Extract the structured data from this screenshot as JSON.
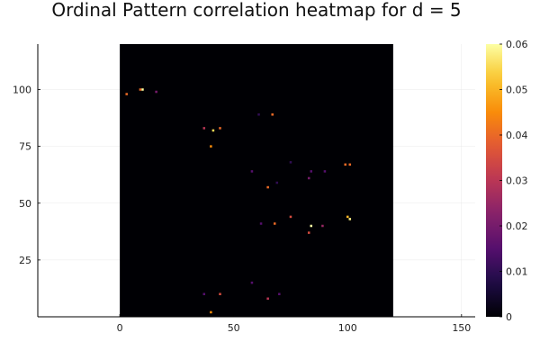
{
  "chart_data": {
    "type": "heatmap",
    "title": "Ordinal Pattern correlation heatmap for d = 5",
    "xlabel": "",
    "ylabel": "",
    "xlim": [
      -36,
      156
    ],
    "ylim": [
      0,
      120
    ],
    "xticks": [
      0,
      50,
      100,
      150
    ],
    "yticks": [
      25,
      50,
      75,
      100
    ],
    "grid": true,
    "matrix_extent": {
      "x": [
        0,
        120
      ],
      "y": [
        0,
        120
      ]
    },
    "background_value": 0,
    "colorbar": {
      "min": 0,
      "max": 0.06,
      "ticks": [
        "0",
        "0.01",
        "0.02",
        "0.03",
        "0.04",
        "0.05",
        "0.06"
      ],
      "colormap": "inferno"
    },
    "nonzero_cells": [
      {
        "x": 10,
        "y": 100,
        "value": 0.06
      },
      {
        "x": 9,
        "y": 100,
        "value": 0.04
      },
      {
        "x": 3,
        "y": 98,
        "value": 0.04
      },
      {
        "x": 16,
        "y": 99,
        "value": 0.02
      },
      {
        "x": 61,
        "y": 89,
        "value": 0.01
      },
      {
        "x": 67,
        "y": 89,
        "value": 0.04
      },
      {
        "x": 37,
        "y": 83,
        "value": 0.03
      },
      {
        "x": 41,
        "y": 82,
        "value": 0.055
      },
      {
        "x": 44,
        "y": 83,
        "value": 0.04
      },
      {
        "x": 40,
        "y": 75,
        "value": 0.045
      },
      {
        "x": 75,
        "y": 68,
        "value": 0.01
      },
      {
        "x": 99,
        "y": 67,
        "value": 0.04
      },
      {
        "x": 101,
        "y": 67,
        "value": 0.04
      },
      {
        "x": 58,
        "y": 64,
        "value": 0.015
      },
      {
        "x": 84,
        "y": 64,
        "value": 0.015
      },
      {
        "x": 90,
        "y": 64,
        "value": 0.015
      },
      {
        "x": 83,
        "y": 61,
        "value": 0.02
      },
      {
        "x": 69,
        "y": 59,
        "value": 0.01
      },
      {
        "x": 65,
        "y": 57,
        "value": 0.04
      },
      {
        "x": 75,
        "y": 44,
        "value": 0.035
      },
      {
        "x": 100,
        "y": 44,
        "value": 0.05
      },
      {
        "x": 101,
        "y": 43,
        "value": 0.058
      },
      {
        "x": 62,
        "y": 41,
        "value": 0.015
      },
      {
        "x": 68,
        "y": 41,
        "value": 0.04
      },
      {
        "x": 84,
        "y": 40,
        "value": 0.06
      },
      {
        "x": 89,
        "y": 40,
        "value": 0.025
      },
      {
        "x": 83,
        "y": 37,
        "value": 0.035
      },
      {
        "x": 58,
        "y": 15,
        "value": 0.015
      },
      {
        "x": 37,
        "y": 10,
        "value": 0.015
      },
      {
        "x": 44,
        "y": 10,
        "value": 0.035
      },
      {
        "x": 70,
        "y": 10,
        "value": 0.015
      },
      {
        "x": 65,
        "y": 8,
        "value": 0.03
      },
      {
        "x": 40,
        "y": 2,
        "value": 0.045
      }
    ]
  }
}
